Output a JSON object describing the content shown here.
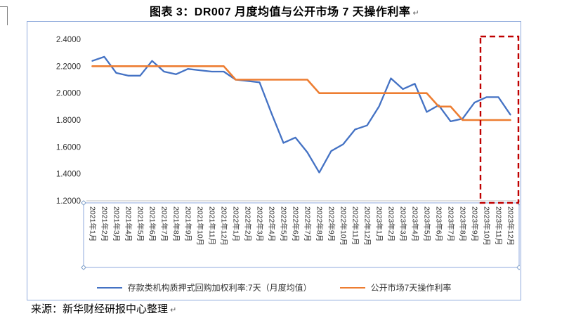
{
  "page": {
    "title": "图表 3：DR007 月度均值与公开市场 7 天操作利率",
    "title_mark": "↵",
    "source": "来源：新华财经研报中心整理",
    "source_mark": "↵"
  },
  "colors": {
    "series_blue": "#4472C4",
    "series_orange": "#ED7D31",
    "highlight_red": "#C00000",
    "box_border": "#8FAADC",
    "axis_line": "#BFBFBF",
    "tick_text": "#333333"
  },
  "chart_data": {
    "type": "line",
    "title": "",
    "xlabel": "",
    "ylabel": "",
    "ylim": [
      1.2,
      2.4
    ],
    "ytick_step": 0.2,
    "ytick_decimals": 4,
    "grid": false,
    "legend_position": "bottom",
    "categories": [
      "2021年1月",
      "2021年2月",
      "2021年3月",
      "2021年4月",
      "2021年5月",
      "2021年6月",
      "2021年7月",
      "2021年8月",
      "2021年9月",
      "2021年10月",
      "2021年11月",
      "2021年12月",
      "2022年1月",
      "2022年2月",
      "2022年3月",
      "2022年4月",
      "2022年5月",
      "2022年6月",
      "2022年7月",
      "2022年8月",
      "2022年9月",
      "2022年10月",
      "2022年11月",
      "2022年12月",
      "2023年1月",
      "2023年2月",
      "2023年3月",
      "2023年4月",
      "2023年5月",
      "2023年6月",
      "2023年7月",
      "2023年8月",
      "2023年9月",
      "2023年10月",
      "2023年11月",
      "2023年12月"
    ],
    "series": [
      {
        "name": "存款类机构质押式回购加权利率:7天（月度均值）",
        "color": "#4472C4",
        "width": 2.3,
        "values": [
          2.24,
          2.27,
          2.15,
          2.13,
          2.13,
          2.24,
          2.16,
          2.14,
          2.18,
          2.17,
          2.16,
          2.16,
          2.1,
          2.09,
          2.08,
          1.85,
          1.63,
          1.67,
          1.56,
          1.41,
          1.57,
          1.62,
          1.73,
          1.76,
          1.9,
          2.11,
          2.03,
          2.07,
          1.86,
          1.91,
          1.79,
          1.81,
          1.93,
          1.97,
          1.97,
          1.84
        ]
      },
      {
        "name": "公开市场7天操作利率",
        "color": "#ED7D31",
        "width": 2.6,
        "values": [
          2.2,
          2.2,
          2.2,
          2.2,
          2.2,
          2.2,
          2.2,
          2.2,
          2.2,
          2.2,
          2.2,
          2.2,
          2.1,
          2.1,
          2.1,
          2.1,
          2.1,
          2.1,
          2.1,
          2.0,
          2.0,
          2.0,
          2.0,
          2.0,
          2.0,
          2.0,
          2.0,
          2.0,
          2.0,
          1.9,
          1.9,
          1.8,
          1.8,
          1.8,
          1.8,
          1.8
        ]
      }
    ],
    "highlight_box": {
      "from_category": "2023年10月",
      "to_category": "2023年12月",
      "color": "#C00000",
      "style": "dashed"
    }
  }
}
